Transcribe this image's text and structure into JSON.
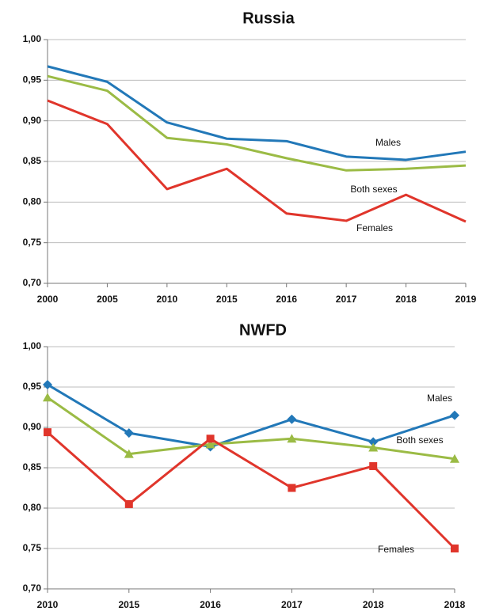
{
  "chart_data": [
    {
      "type": "line",
      "title": "Russia",
      "categories": [
        "2000",
        "2005",
        "2010",
        "2015",
        "2016",
        "2017",
        "2018",
        "2019"
      ],
      "ylim": [
        0.7,
        1.0
      ],
      "yticks": [
        {
          "value": 0.7,
          "label": "0,70"
        },
        {
          "value": 0.75,
          "label": "0,75"
        },
        {
          "value": 0.8,
          "label": "0,80"
        },
        {
          "value": 0.85,
          "label": "0,85"
        },
        {
          "value": 0.9,
          "label": "0,90"
        },
        {
          "value": 0.95,
          "label": "0,95"
        },
        {
          "value": 1.0,
          "label": "1,00"
        }
      ],
      "grid": true,
      "markers": false,
      "series": [
        {
          "name": "Males",
          "color": "#2278b8",
          "values": [
            0.967,
            0.948,
            0.898,
            0.878,
            0.875,
            0.856,
            0.852,
            0.862
          ]
        },
        {
          "name": "Both sexes",
          "color": "#9bbb45",
          "values": [
            0.955,
            0.937,
            0.879,
            0.871,
            0.854,
            0.839,
            0.841,
            0.845
          ]
        },
        {
          "name": "Females",
          "color": "#e0352b",
          "values": [
            0.925,
            0.896,
            0.816,
            0.841,
            0.786,
            0.777,
            0.809,
            0.776
          ]
        }
      ]
    },
    {
      "type": "line",
      "title": "NWFD",
      "categories": [
        "2010",
        "2015",
        "2016",
        "2017",
        "2018",
        "2018"
      ],
      "ylim": [
        0.7,
        1.0
      ],
      "yticks": [
        {
          "value": 0.7,
          "label": "0,70"
        },
        {
          "value": 0.75,
          "label": "0,75"
        },
        {
          "value": 0.8,
          "label": "0,80"
        },
        {
          "value": 0.85,
          "label": "0,85"
        },
        {
          "value": 0.9,
          "label": "0,90"
        },
        {
          "value": 0.95,
          "label": "0,95"
        },
        {
          "value": 1.0,
          "label": "1,00"
        }
      ],
      "grid": true,
      "markers": true,
      "series": [
        {
          "name": "Males",
          "color": "#2278b8",
          "marker": "diamond",
          "values": [
            0.953,
            0.893,
            0.876,
            0.91,
            0.882,
            0.915
          ]
        },
        {
          "name": "Both sexes",
          "color": "#9bbb45",
          "marker": "triangle",
          "values": [
            0.937,
            0.867,
            0.879,
            0.886,
            0.875,
            0.861
          ]
        },
        {
          "name": "Females",
          "color": "#e0352b",
          "marker": "square",
          "values": [
            0.894,
            0.805,
            0.886,
            0.825,
            0.852,
            0.75
          ]
        }
      ]
    }
  ]
}
